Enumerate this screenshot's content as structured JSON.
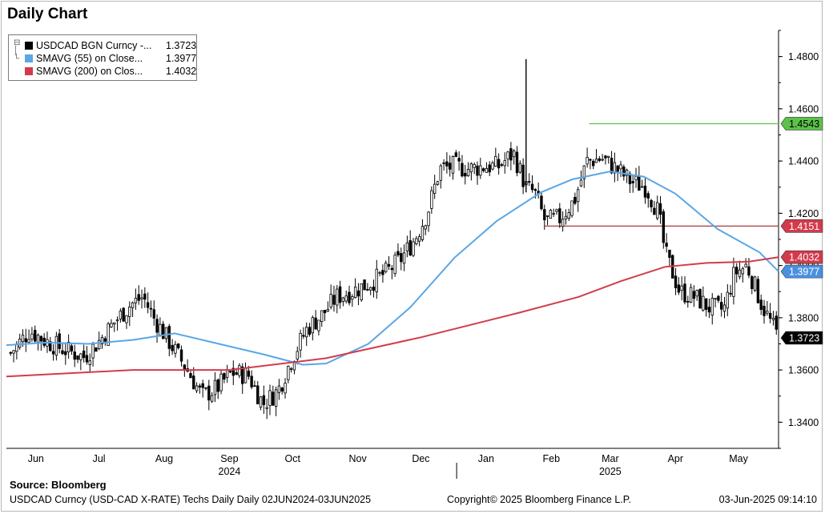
{
  "title": "Daily Chart",
  "legend": [
    {
      "label": "USDCAD BGN Curncy -...",
      "value": "1.3723",
      "color": "#000000"
    },
    {
      "label": "SMAVG (55)  on Close...",
      "value": "1.3977",
      "color": "#5aa6e6"
    },
    {
      "label": "SMAVG (200)  on Clos...",
      "value": "1.4032",
      "color": "#d33b4c"
    }
  ],
  "source": "Source: Bloomberg",
  "footer": {
    "left": "USDCAD Curncy (USD-CAD X-RATE) Techs Daily  Daily 02JUN2024-03JUN2025",
    "center": "Copyright© 2025 Bloomberg Finance L.P.",
    "right": "03-Jun-2025 09:14:10"
  },
  "chart_data": {
    "type": "line",
    "x_range": [
      "2024-06-01",
      "2025-06-03"
    ],
    "ylim": [
      1.33,
      1.49
    ],
    "y_ticks": [
      "1.3400",
      "1.3600",
      "1.3800",
      "1.4000",
      "1.4200",
      "1.4400",
      "1.4600",
      "1.4800"
    ],
    "month_labels": [
      {
        "label": "Jun",
        "date": "2024-06-15"
      },
      {
        "label": "Jul",
        "date": "2024-07-15"
      },
      {
        "label": "Aug",
        "date": "2024-08-15"
      },
      {
        "label": "Sep",
        "date": "2024-09-15"
      },
      {
        "label": "Oct",
        "date": "2024-10-15"
      },
      {
        "label": "Nov",
        "date": "2024-11-15"
      },
      {
        "label": "Dec",
        "date": "2024-12-15"
      },
      {
        "label": "Jan",
        "date": "2025-01-15"
      },
      {
        "label": "Feb",
        "date": "2025-02-15"
      },
      {
        "label": "Mar",
        "date": "2025-03-15"
      },
      {
        "label": "Apr",
        "date": "2025-04-15"
      },
      {
        "label": "May",
        "date": "2025-05-15"
      }
    ],
    "year_labels": [
      {
        "label": "2024",
        "date": "2024-09-15"
      },
      {
        "label": "2025",
        "date": "2025-03-15"
      }
    ],
    "year_divider_date": "2025-01-01",
    "series": [
      {
        "name": "USDCAD BGN Curncy",
        "type": "candlestick",
        "color": "#000000",
        "points": [
          [
            "2024-06-03",
            1.3665
          ],
          [
            "2024-06-12",
            1.375
          ],
          [
            "2024-06-20",
            1.371
          ],
          [
            "2024-06-28",
            1.368
          ],
          [
            "2024-07-08",
            1.365
          ],
          [
            "2024-07-15",
            1.371
          ],
          [
            "2024-07-22",
            1.378
          ],
          [
            "2024-07-30",
            1.385
          ],
          [
            "2024-08-05",
            1.388
          ],
          [
            "2024-08-10",
            1.38
          ],
          [
            "2024-08-18",
            1.37
          ],
          [
            "2024-08-26",
            1.36
          ],
          [
            "2024-09-02",
            1.35
          ],
          [
            "2024-09-09",
            1.353
          ],
          [
            "2024-09-16",
            1.359
          ],
          [
            "2024-09-24",
            1.358
          ],
          [
            "2024-10-01",
            1.347
          ],
          [
            "2024-10-08",
            1.352
          ],
          [
            "2024-10-15",
            1.365
          ],
          [
            "2024-10-22",
            1.376
          ],
          [
            "2024-10-29",
            1.381
          ],
          [
            "2024-11-05",
            1.388
          ],
          [
            "2024-11-12",
            1.39
          ],
          [
            "2024-11-20",
            1.393
          ],
          [
            "2024-11-28",
            1.397
          ],
          [
            "2024-12-05",
            1.402
          ],
          [
            "2024-12-12",
            1.41
          ],
          [
            "2024-12-18",
            1.42
          ],
          [
            "2024-12-24",
            1.437
          ],
          [
            "2024-12-31",
            1.438
          ],
          [
            "2025-01-07",
            1.437
          ],
          [
            "2025-01-14",
            1.438
          ],
          [
            "2025-01-21",
            1.438
          ],
          [
            "2025-01-28",
            1.443
          ],
          [
            "2025-02-03",
            1.43
          ],
          [
            "2025-02-07",
            1.428
          ],
          [
            "2025-02-12",
            1.417
          ],
          [
            "2025-02-19",
            1.418
          ],
          [
            "2025-02-26",
            1.425
          ],
          [
            "2025-03-04",
            1.44
          ],
          [
            "2025-03-11",
            1.441
          ],
          [
            "2025-03-18",
            1.437
          ],
          [
            "2025-03-25",
            1.432
          ],
          [
            "2025-04-01",
            1.43
          ],
          [
            "2025-04-07",
            1.42
          ],
          [
            "2025-04-10",
            1.405
          ],
          [
            "2025-04-17",
            1.39
          ],
          [
            "2025-04-24",
            1.388
          ],
          [
            "2025-05-01",
            1.384
          ],
          [
            "2025-05-08",
            1.383
          ],
          [
            "2025-05-13",
            1.397
          ],
          [
            "2025-05-19",
            1.4
          ],
          [
            "2025-05-26",
            1.385
          ],
          [
            "2025-06-03",
            1.3723
          ]
        ]
      },
      {
        "name": "SMAVG (55)",
        "type": "line",
        "color": "#5aa6e6",
        "points": [
          [
            "2024-06-01",
            1.3695
          ],
          [
            "2024-06-20",
            1.3705
          ],
          [
            "2024-07-10",
            1.37
          ],
          [
            "2024-07-31",
            1.3715
          ],
          [
            "2024-08-20",
            1.374
          ],
          [
            "2024-09-10",
            1.37
          ],
          [
            "2024-10-01",
            1.366
          ],
          [
            "2024-10-20",
            1.362
          ],
          [
            "2024-10-31",
            1.3625
          ],
          [
            "2024-11-20",
            1.37
          ],
          [
            "2024-12-10",
            1.384
          ],
          [
            "2024-12-31",
            1.403
          ],
          [
            "2025-01-20",
            1.417
          ],
          [
            "2025-02-10",
            1.428
          ],
          [
            "2025-02-25",
            1.433
          ],
          [
            "2025-03-15",
            1.436
          ],
          [
            "2025-03-31",
            1.434
          ],
          [
            "2025-04-15",
            1.4275
          ],
          [
            "2025-05-05",
            1.414
          ],
          [
            "2025-05-25",
            1.405
          ],
          [
            "2025-06-03",
            1.3977
          ]
        ]
      },
      {
        "name": "SMAVG (200)",
        "type": "line",
        "color": "#d33b4c",
        "points": [
          [
            "2024-06-01",
            1.3575
          ],
          [
            "2024-07-31",
            1.36
          ],
          [
            "2024-09-15",
            1.36
          ],
          [
            "2024-10-31",
            1.3645
          ],
          [
            "2024-12-15",
            1.3725
          ],
          [
            "2025-01-31",
            1.382
          ],
          [
            "2025-02-28",
            1.388
          ],
          [
            "2025-03-20",
            1.394
          ],
          [
            "2025-04-10",
            1.3995
          ],
          [
            "2025-04-30",
            1.401
          ],
          [
            "2025-05-20",
            1.4015
          ],
          [
            "2025-06-03",
            1.4032
          ]
        ]
      }
    ],
    "horizontal_lines": [
      {
        "value": 1.4543,
        "label": "1.4543",
        "color": "#5cc24a",
        "from": "2025-03-05"
      },
      {
        "value": 1.4151,
        "label": "1.4151",
        "color": "#a83a3a",
        "from": "2025-02-12"
      },
      {
        "value": 1.3723,
        "label": "1.3723",
        "color": "#c8b84a",
        "from": "2025-06-03"
      }
    ],
    "price_tags": [
      {
        "value": 1.4543,
        "label": "1.4543",
        "bg": "#5cc24a",
        "fg": "#000000"
      },
      {
        "value": 1.4151,
        "label": "1.4151",
        "bg": "#d33b4c",
        "fg": "#ffffff"
      },
      {
        "value": 1.4032,
        "label": "1.4032",
        "bg": "#d33b4c",
        "fg": "#ffffff"
      },
      {
        "value": 1.3977,
        "label": "1.3977",
        "bg": "#4a90e2",
        "fg": "#ffffff"
      },
      {
        "value": 1.3723,
        "label": "1.3723",
        "bg": "#000000",
        "fg": "#ffffff"
      }
    ],
    "grid": false,
    "legend_position": "top-left"
  }
}
